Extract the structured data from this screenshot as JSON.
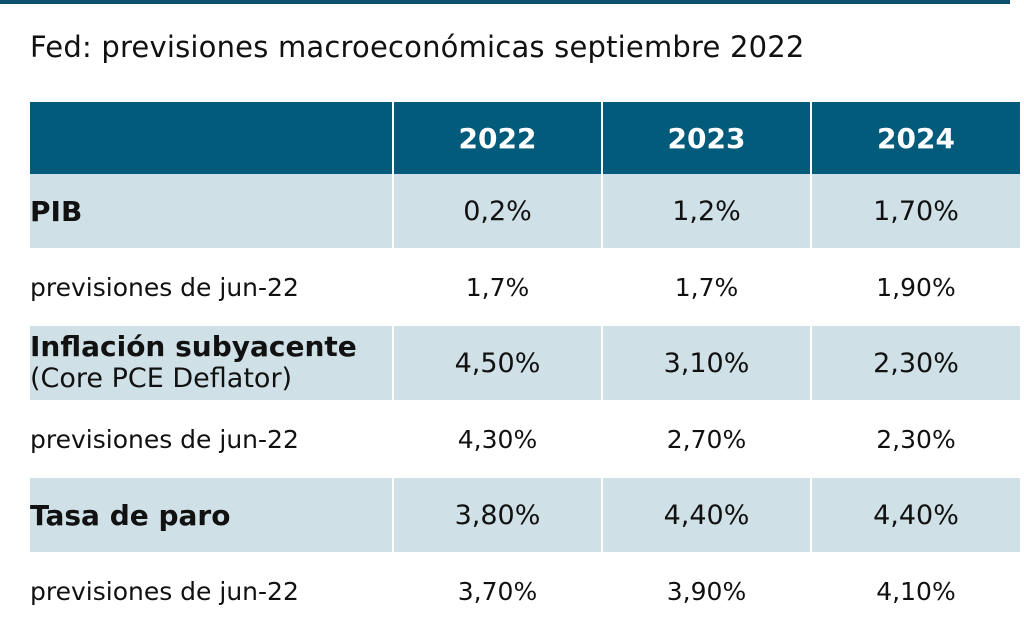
{
  "chart_data": {
    "type": "table",
    "title": "Fed: previsiones macroeconómicas septiembre 2022",
    "columns": [
      "",
      "2022",
      "2023",
      "2024"
    ],
    "rows": [
      {
        "label": "PIB",
        "label_sub": "",
        "kind": "main",
        "values": [
          "0,2%",
          "1,2%",
          "1,70%"
        ]
      },
      {
        "label": "previsiones de jun-22",
        "label_sub": "",
        "kind": "sub",
        "values": [
          "1,7%",
          "1,7%",
          "1,90%"
        ]
      },
      {
        "label": "Inflación subyacente",
        "label_sub": "(Core PCE Deflator)",
        "kind": "main",
        "values": [
          "4,50%",
          "3,10%",
          "2,30%"
        ]
      },
      {
        "label": "previsiones de jun-22",
        "label_sub": "",
        "kind": "sub",
        "values": [
          "4,30%",
          "2,70%",
          "2,30%"
        ]
      },
      {
        "label": "Tasa de paro",
        "label_sub": "",
        "kind": "main",
        "values": [
          "3,80%",
          "4,40%",
          "4,40%"
        ]
      },
      {
        "label": "previsiones de jun-22",
        "label_sub": "",
        "kind": "sub",
        "values": [
          "3,70%",
          "3,90%",
          "4,10%"
        ]
      }
    ]
  },
  "colors": {
    "header_bg": "#035b7c",
    "main_row_bg": "#cfe0e7",
    "sub_row_bg": "#ffffff",
    "rule": "#0d4f6c"
  }
}
